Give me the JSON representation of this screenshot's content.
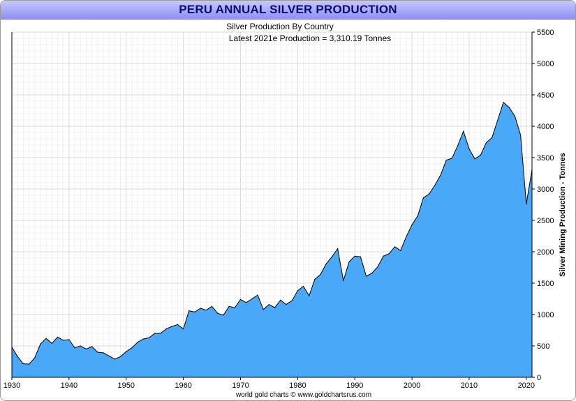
{
  "chart_data": {
    "type": "area",
    "title": "PERU ANNUAL SILVER PRODUCTION",
    "subtitle": "Silver Production By Country",
    "annotation": "Latest 2021e  Production = 3,310.19 Tonnes",
    "ylabel": "Silver Mining Production - Tonnes",
    "xlabel": "",
    "footer": "world gold charts © www.goldchartsrus.com",
    "xlim": [
      1930,
      2021
    ],
    "ylim": [
      0,
      5500
    ],
    "x_ticks": [
      1930,
      1940,
      1950,
      1960,
      1970,
      1980,
      1990,
      2000,
      2010,
      2020
    ],
    "y_ticks": [
      0,
      500,
      1000,
      1500,
      2000,
      2500,
      3000,
      3500,
      4000,
      4500,
      5000,
      5500
    ],
    "grid": true,
    "fill_color": "#4aa8f8",
    "line_color": "#000000",
    "x": [
      1930,
      1931,
      1932,
      1933,
      1934,
      1935,
      1936,
      1937,
      1938,
      1939,
      1940,
      1941,
      1942,
      1943,
      1944,
      1945,
      1946,
      1947,
      1948,
      1949,
      1950,
      1951,
      1952,
      1953,
      1954,
      1955,
      1956,
      1957,
      1958,
      1959,
      1960,
      1961,
      1962,
      1963,
      1964,
      1965,
      1966,
      1967,
      1968,
      1969,
      1970,
      1971,
      1972,
      1973,
      1974,
      1975,
      1976,
      1977,
      1978,
      1979,
      1980,
      1981,
      1982,
      1983,
      1984,
      1985,
      1986,
      1987,
      1988,
      1989,
      1990,
      1991,
      1992,
      1993,
      1994,
      1995,
      1996,
      1997,
      1998,
      1999,
      2000,
      2001,
      2002,
      2003,
      2004,
      2005,
      2006,
      2007,
      2008,
      2009,
      2010,
      2011,
      2012,
      2013,
      2014,
      2015,
      2016,
      2017,
      2018,
      2019,
      2020,
      2021
    ],
    "values": [
      480,
      330,
      215,
      210,
      310,
      530,
      620,
      540,
      640,
      590,
      600,
      470,
      500,
      450,
      490,
      400,
      390,
      340,
      290,
      330,
      410,
      470,
      560,
      610,
      630,
      700,
      700,
      770,
      810,
      840,
      770,
      1060,
      1040,
      1100,
      1070,
      1130,
      1020,
      990,
      1130,
      1110,
      1240,
      1190,
      1250,
      1310,
      1080,
      1160,
      1110,
      1230,
      1160,
      1220,
      1380,
      1450,
      1300,
      1560,
      1640,
      1810,
      1920,
      2050,
      1540,
      1840,
      1930,
      1920,
      1610,
      1660,
      1760,
      1930,
      1970,
      2080,
      2020,
      2240,
      2430,
      2570,
      2860,
      2920,
      3060,
      3220,
      3460,
      3490,
      3690,
      3920,
      3640,
      3480,
      3540,
      3740,
      3820,
      4100,
      4380,
      4300,
      4160,
      3860,
      2760,
      3310
    ]
  }
}
